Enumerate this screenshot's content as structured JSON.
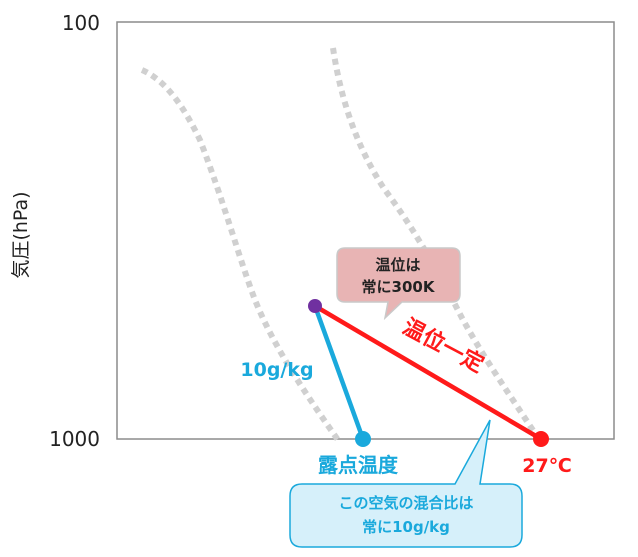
{
  "axis": {
    "ylabel": "気圧(hPa)",
    "y_ticks": [
      "100",
      "1000"
    ]
  },
  "labels": {
    "potential_temp_constant": "温位一定",
    "mixing_ratio": "10g/kg",
    "dew_point": "露点温度",
    "temperature": "27℃"
  },
  "callouts": {
    "potential_temp": [
      "温位は",
      "常に300K"
    ],
    "mixing_ratio": [
      "この空気の混合比は",
      "常に10g/kg"
    ]
  },
  "colors": {
    "dry_adiabat": "#ff1a1a",
    "mixing_ratio_line": "#1aa9dc",
    "lifted_point": "#7030a0",
    "guide_curve": "#d0d0d0",
    "note_fill": "#e8b4b4",
    "mix_note_fill": "#d6f0fa"
  }
}
